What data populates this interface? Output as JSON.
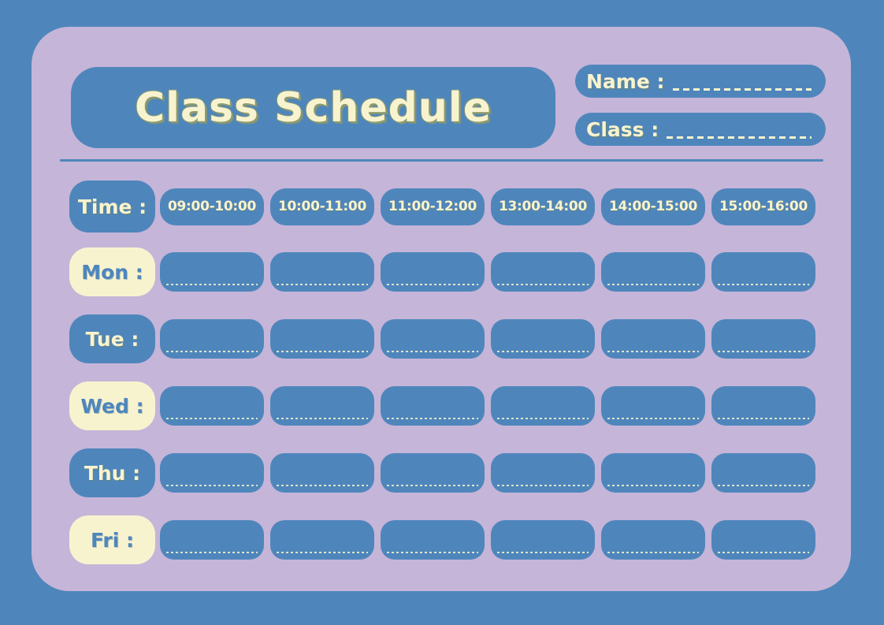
{
  "page": {
    "background_color": "#4E86BC",
    "card_color": "#C5B5D8",
    "accent_blue": "#4E86BC",
    "cream": "#F8F3CF"
  },
  "header": {
    "title": "Class Schedule",
    "name_field_label": "Name :",
    "name_field_value": "",
    "class_field_label": "Class :",
    "class_field_value": ""
  },
  "schedule": {
    "time_header_label": "Time :",
    "time_slots": [
      "09:00-10:00",
      "10:00-11:00",
      "11:00-12:00",
      "13:00-14:00",
      "14:00-15:00",
      "15:00-16:00"
    ],
    "days": [
      {
        "id": "mon",
        "label": "Mon :",
        "style": "cream",
        "cells": [
          "",
          "",
          "",
          "",
          "",
          ""
        ]
      },
      {
        "id": "tue",
        "label": "Tue :",
        "style": "blue",
        "cells": [
          "",
          "",
          "",
          "",
          "",
          ""
        ]
      },
      {
        "id": "wed",
        "label": "Wed :",
        "style": "cream",
        "cells": [
          "",
          "",
          "",
          "",
          "",
          ""
        ]
      },
      {
        "id": "thu",
        "label": "Thu :",
        "style": "blue",
        "cells": [
          "",
          "",
          "",
          "",
          "",
          ""
        ]
      },
      {
        "id": "fri",
        "label": "Fri :",
        "style": "cream",
        "cells": [
          "",
          "",
          "",
          "",
          "",
          ""
        ]
      }
    ]
  }
}
